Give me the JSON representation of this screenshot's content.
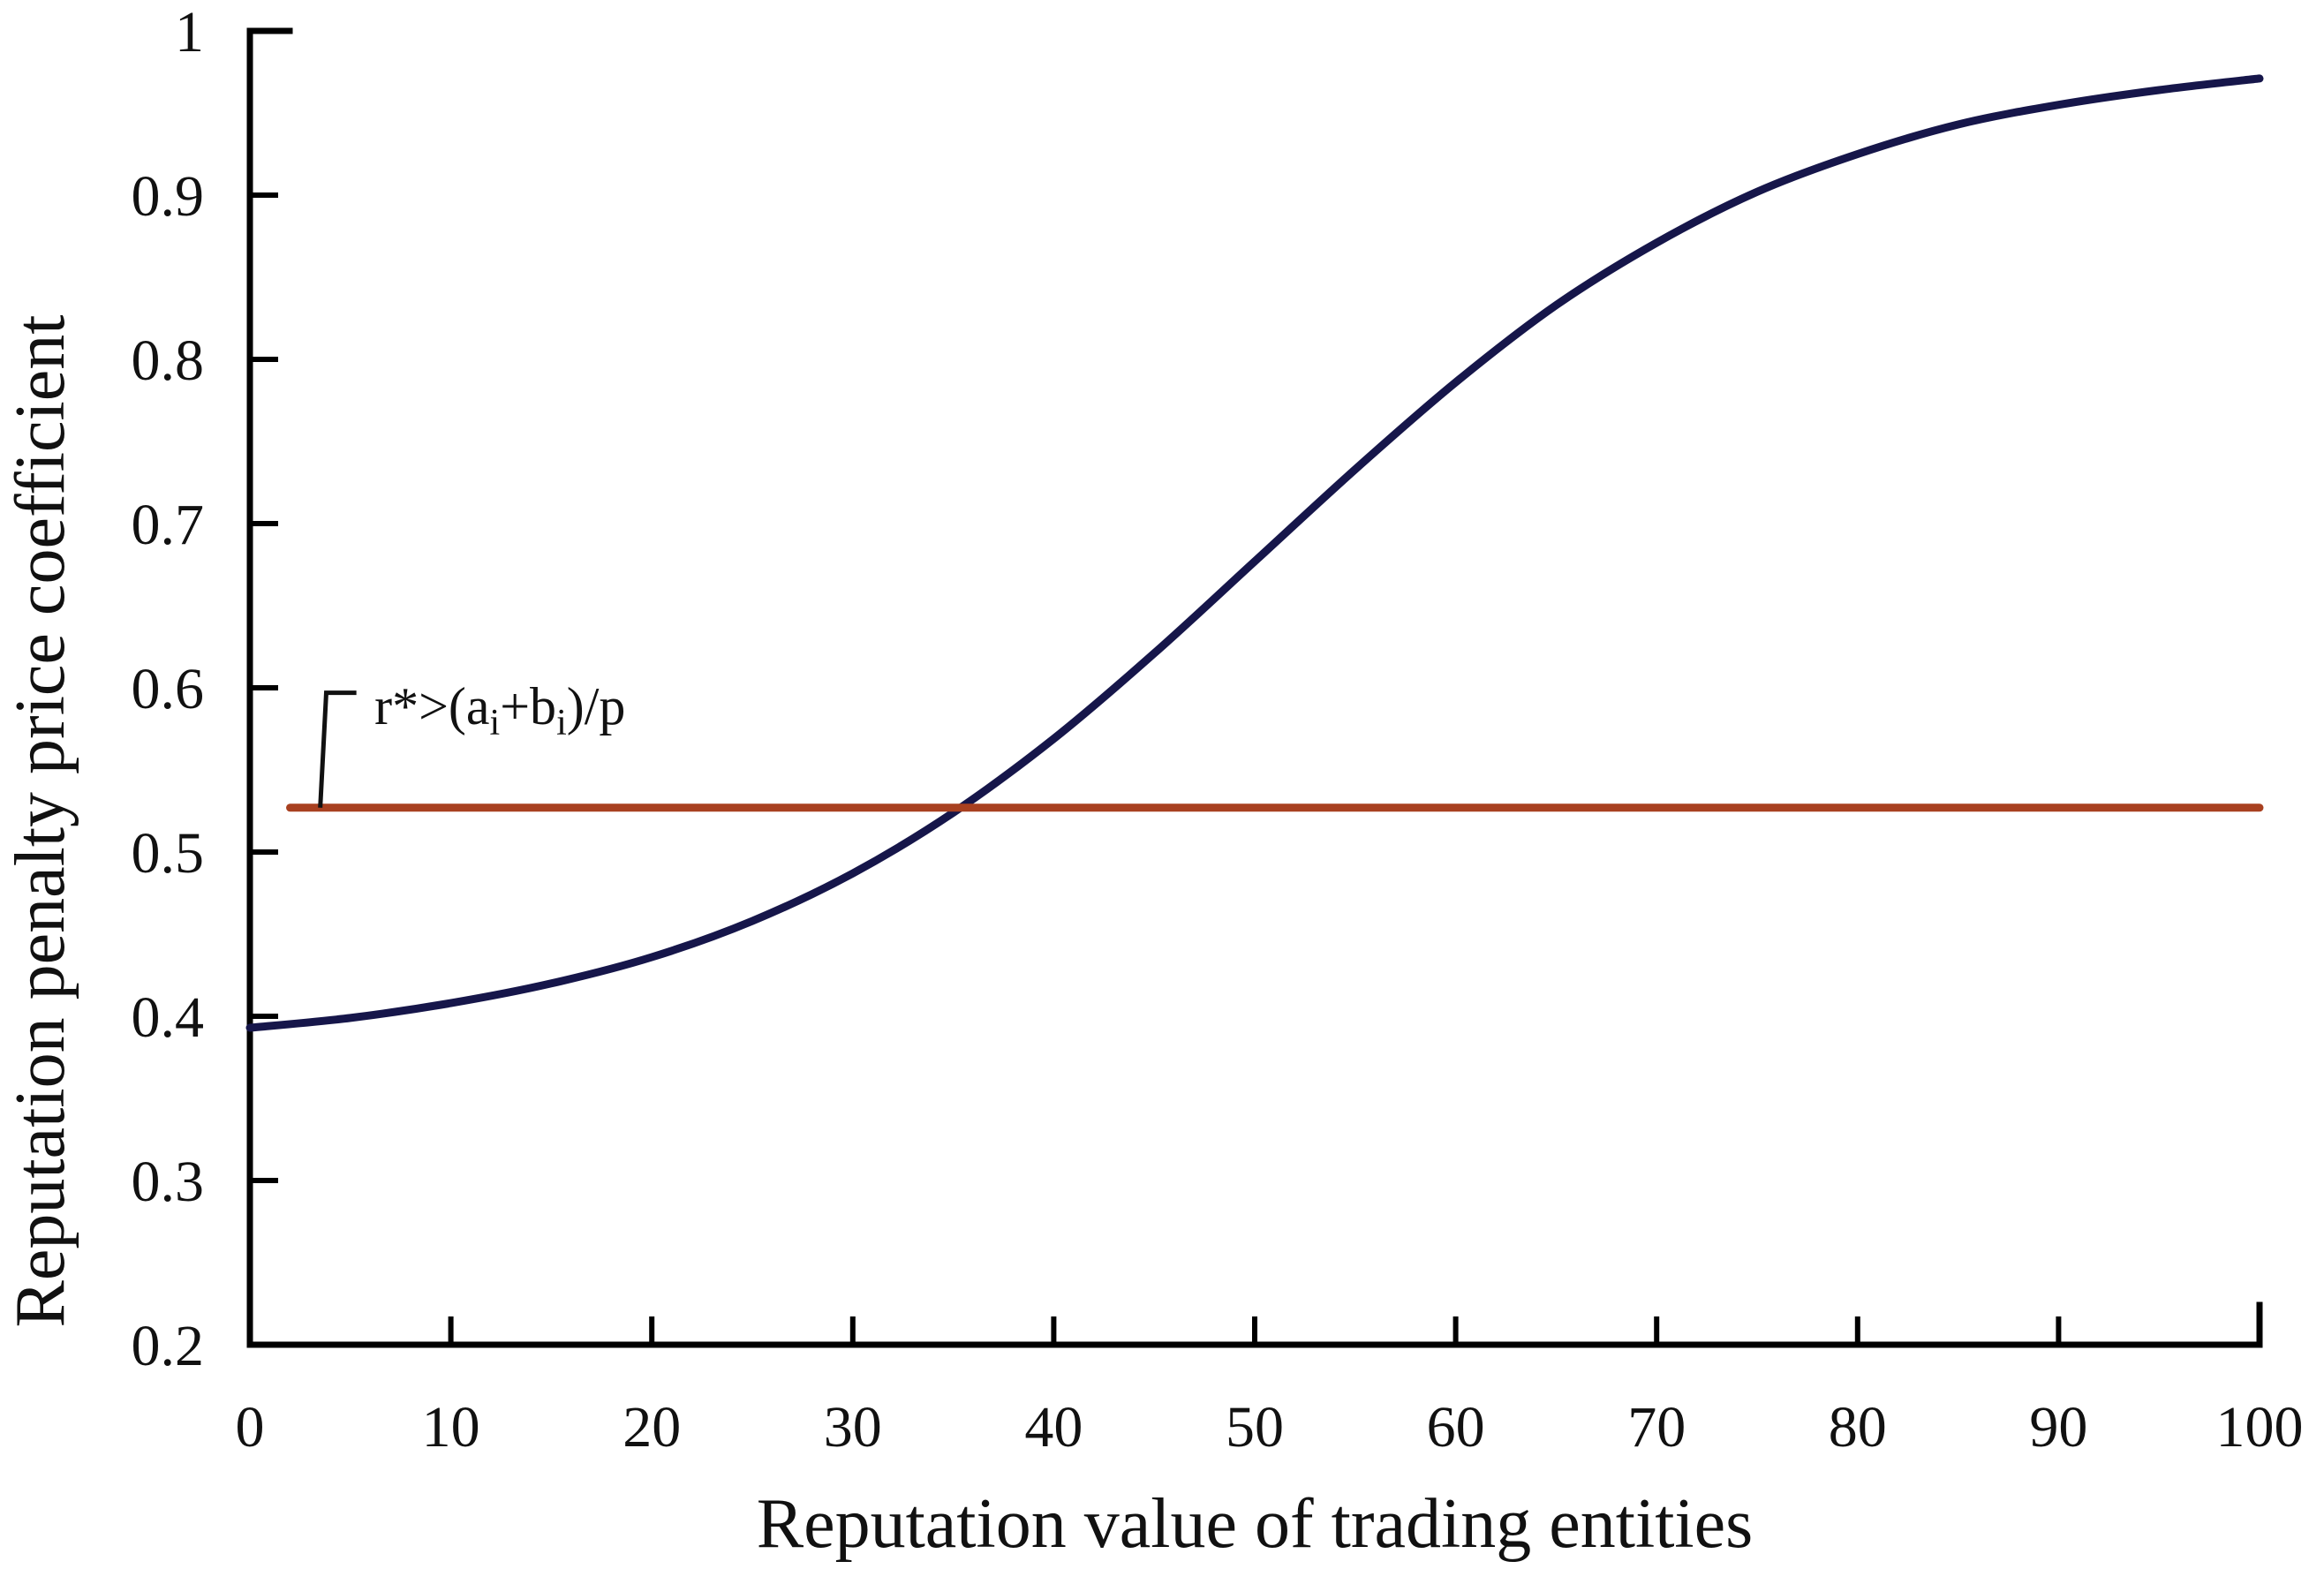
{
  "page": {
    "background": "#ffffff"
  },
  "chart_data": {
    "type": "line",
    "title": "",
    "xlabel": "Reputation value of trading entities",
    "ylabel": "Reputation penalty price coefficient",
    "xlim": [
      0,
      100
    ],
    "ylim": [
      0.2,
      1.0
    ],
    "x_ticks": [
      0,
      10,
      20,
      30,
      40,
      50,
      60,
      70,
      80,
      90,
      100
    ],
    "x_tick_labels": [
      "0",
      "10",
      "20",
      "30",
      "40",
      "50",
      "60",
      "70",
      "80",
      "90",
      "100"
    ],
    "y_ticks": [
      0.2,
      0.3,
      0.4,
      0.5,
      0.6,
      0.7,
      0.8,
      0.9,
      1.0
    ],
    "y_tick_labels": [
      "0.2",
      "0.3",
      "0.4",
      "0.5",
      "0.6",
      "0.7",
      "0.8",
      "0.9",
      "1"
    ],
    "grid": false,
    "legend_position": "none",
    "axis_color": "#000000",
    "text_color": "#111111",
    "series": [
      {
        "name": "reputation-penalty-sigmoid",
        "type": "smooth-line",
        "color": "#16164a",
        "stroke_width": 9,
        "x": [
          0,
          5,
          10,
          15,
          20,
          25,
          30,
          35,
          40,
          45,
          50,
          55,
          60,
          65,
          70,
          75,
          80,
          85,
          90,
          95,
          100
        ],
        "y": [
          0.393,
          0.399,
          0.408,
          0.42,
          0.436,
          0.458,
          0.487,
          0.524,
          0.569,
          0.621,
          0.677,
          0.733,
          0.786,
          0.833,
          0.871,
          0.902,
          0.925,
          0.943,
          0.955,
          0.964,
          0.971
        ]
      },
      {
        "name": "threshold-horizontal-line",
        "type": "line",
        "color": "#a84020",
        "stroke_width": 9,
        "x": [
          2,
          100
        ],
        "y": [
          0.527,
          0.527
        ]
      }
    ],
    "annotation": {
      "label": "r*>(ai+bi)/p",
      "parts": [
        "r*>(a",
        "i",
        "+b",
        "i",
        ")/p"
      ],
      "subscript_part_indexes": [
        1,
        3
      ],
      "leader_color": "#111111",
      "leader": {
        "x1": 3.5,
        "y1": 0.527,
        "x2": 3.8,
        "y2": 0.597,
        "x3": 5.3,
        "y3": 0.597
      },
      "text_x": 6.2,
      "text_y": 0.578
    }
  }
}
